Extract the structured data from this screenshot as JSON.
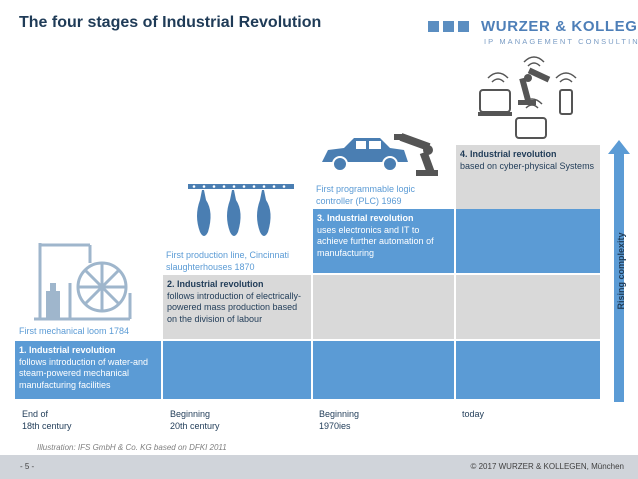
{
  "title": "The four stages of Industrial Revolution",
  "logo": {
    "name": "WURZER & KOLLEGEN",
    "subtitle": "IP MANAGEMENT CONSULTING"
  },
  "stages": [
    {
      "heading": "1. Industrial revolution",
      "text": "follows introduction of water-and steam-powered mechanical manufacturing facilities"
    },
    {
      "heading": "2. Industrial revolution",
      "text": "follows introduction of electrically-powered mass production based on the division of labour"
    },
    {
      "heading": "3. Industrial revolution",
      "text": "uses electronics and IT to achieve further automation of manufacturing"
    },
    {
      "heading": "4. Industrial revolution",
      "text": "based on cyber-physical Systems"
    }
  ],
  "captions": [
    "First mechanical loom 1784",
    "First production line, Cincinnati slaughterhouses 1870",
    "First programmable logic controller (PLC) 1969"
  ],
  "timeline": [
    {
      "line1": "End of",
      "line2": "18th century"
    },
    {
      "line1": "Beginning",
      "line2": "20th century"
    },
    {
      "line1": "Beginning",
      "line2": "1970ies"
    },
    {
      "line1": "today",
      "line2": ""
    }
  ],
  "axis_label": "Rising complexity",
  "illustration_note": "Illustration: IFS GmbH & Co. KG based on DFKI 2011",
  "page_number": "- 5 -",
  "copyright": "© 2017 WURZER & KOLLEGEN, München",
  "colors": {
    "blue": "#5b9bd5",
    "grey": "#d9d9d9",
    "title": "#1f3b57",
    "arrow": "#5b9bd5"
  },
  "icons": [
    "loom-icon",
    "slaughterhouse-line-icon",
    "car-robot-arm-icon",
    "cyber-physical-devices-icon",
    "rising-arrow-icon",
    "logo-squares-icon"
  ]
}
